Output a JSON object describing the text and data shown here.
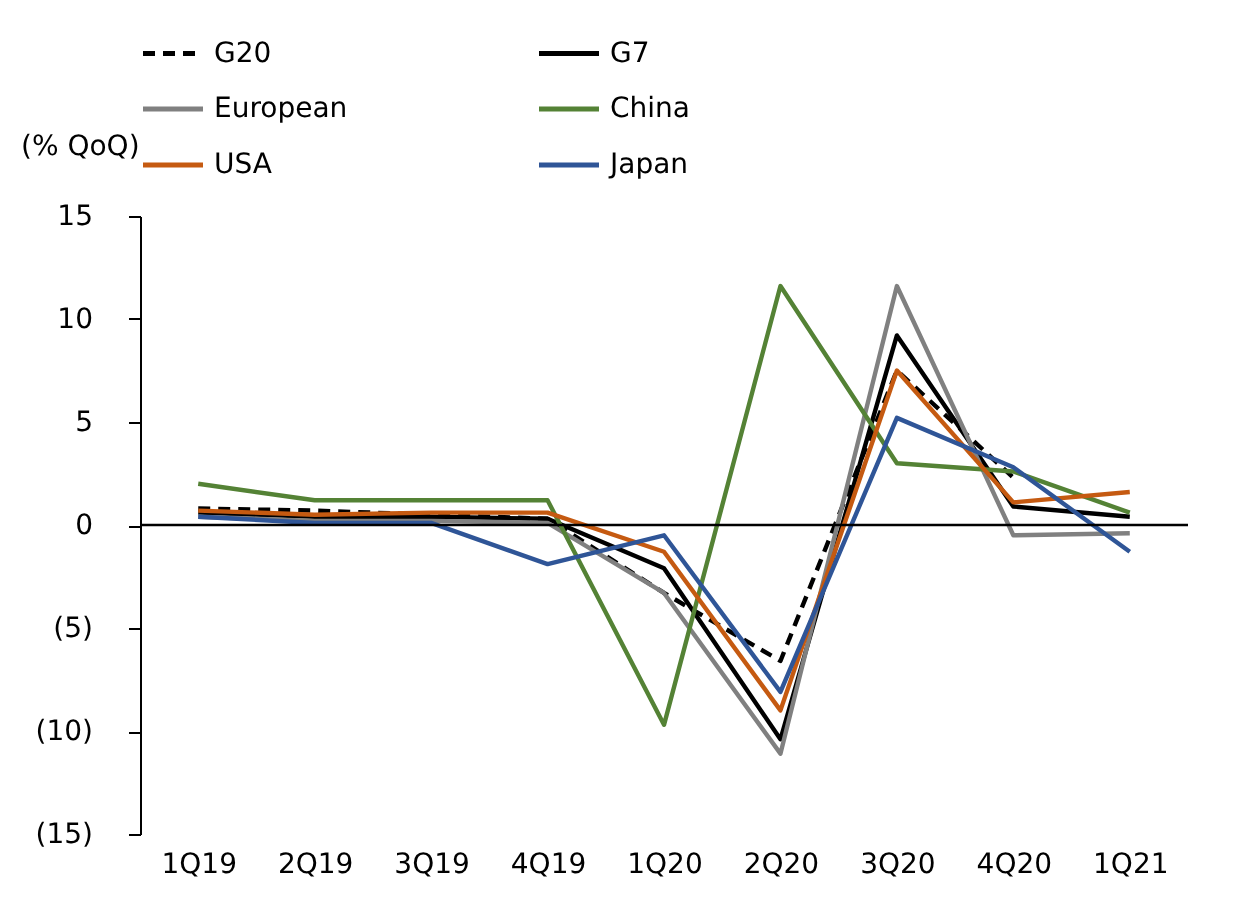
{
  "chart_data": {
    "type": "line",
    "ylabel": "(% QoQ)",
    "categories": [
      "1Q19",
      "2Q19",
      "3Q19",
      "4Q19",
      "1Q20",
      "2Q20",
      "3Q20",
      "4Q20",
      "1Q21"
    ],
    "ylim": [
      -15,
      15
    ],
    "yticks": [
      {
        "value": -15,
        "label": "(15)"
      },
      {
        "value": -10,
        "label": "(10)"
      },
      {
        "value": -5,
        "label": "(5)"
      },
      0,
      5,
      10,
      15
    ],
    "grid": false,
    "legend": "top",
    "marker": "none",
    "ref_lines": [
      {
        "axis": "y",
        "value": 0,
        "color": "#000000",
        "line_style": "solid"
      }
    ],
    "series": [
      {
        "name": "G20",
        "color": "#000000",
        "line_style": "dashed",
        "values": [
          0.8,
          0.7,
          0.5,
          0.3,
          -3.3,
          -6.6,
          7.5,
          2.3,
          null
        ]
      },
      {
        "name": "G7",
        "color": "#000000",
        "line_style": "solid",
        "values": [
          0.6,
          0.4,
          0.4,
          0.3,
          -2.1,
          -10.4,
          9.2,
          0.9,
          0.4
        ]
      },
      {
        "name": "European",
        "color": "#808080",
        "line_style": "solid",
        "values": [
          0.4,
          0.2,
          0.2,
          0.1,
          -3.3,
          -11.1,
          11.6,
          -0.5,
          -0.4
        ]
      },
      {
        "name": "China",
        "color": "#548235",
        "line_style": "solid",
        "values": [
          2.0,
          1.2,
          1.2,
          1.2,
          -9.7,
          11.6,
          3.0,
          2.6,
          0.6
        ]
      },
      {
        "name": "USA",
        "color": "#c55a11",
        "line_style": "solid",
        "values": [
          0.7,
          0.5,
          0.6,
          0.6,
          -1.3,
          -9.0,
          7.5,
          1.1,
          1.6
        ]
      },
      {
        "name": "Japan",
        "color": "#2f5597",
        "line_style": "solid",
        "values": [
          0.4,
          0.1,
          0.1,
          -1.9,
          -0.5,
          -8.1,
          5.2,
          2.8,
          -1.3
        ]
      }
    ]
  }
}
